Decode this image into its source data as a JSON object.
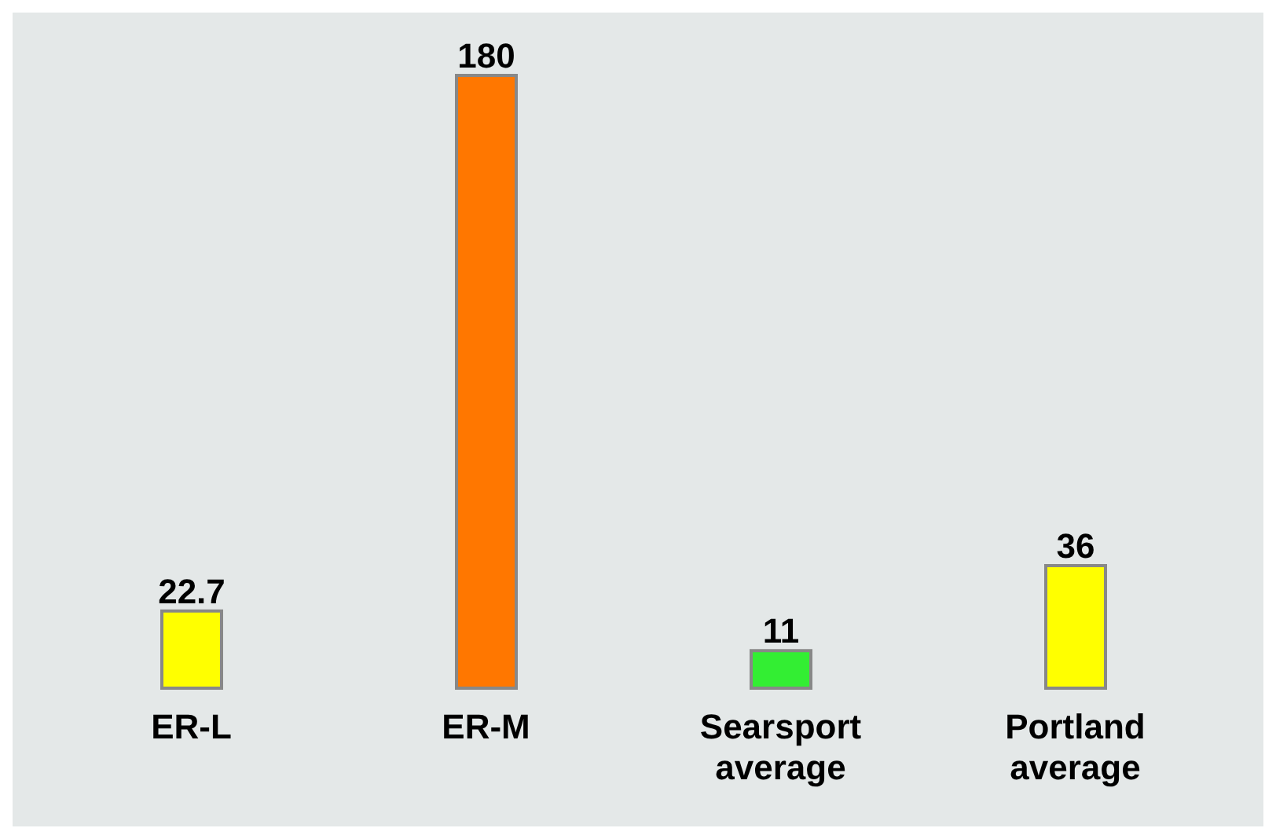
{
  "chart_data": {
    "type": "bar",
    "categories": [
      "ER-L",
      "ER-M",
      "Searsport average",
      "Portland average"
    ],
    "values": [
      22.7,
      180,
      11,
      36
    ],
    "colors": [
      "#ffff00",
      "#ff7700",
      "#33ee33",
      "#ffff00"
    ],
    "data_labels": true
  }
}
